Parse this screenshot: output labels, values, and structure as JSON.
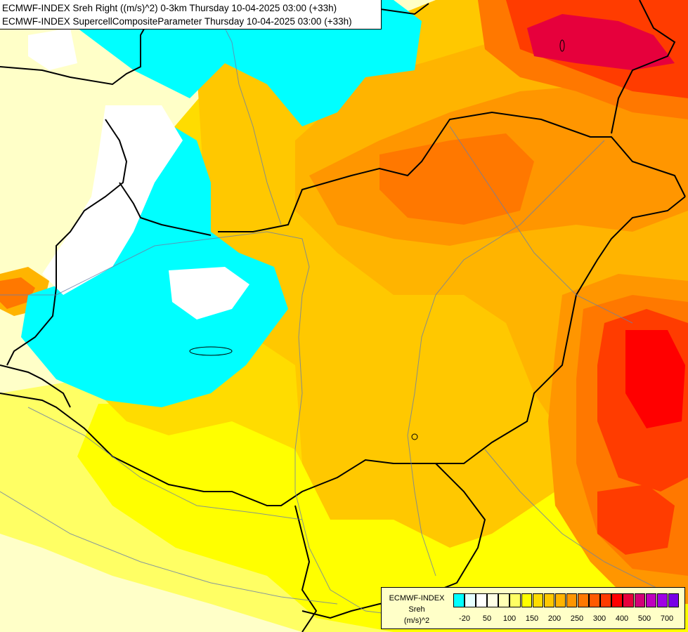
{
  "header": {
    "line1": "ECMWF-INDEX Sreh Right ((m/s)^2) 0-3km Thursday 10-04-2025 03:00 (+33h)",
    "line2": "ECMWF-INDEX SupercellCompositeParameter Thursday 10-04-2025 03:00 (+33h)"
  },
  "legend": {
    "title": "ECMWF-INDEX",
    "unit_name": "Sreh",
    "unit": "(m/s)^2",
    "colors": [
      "#00ffff",
      "#e6ffff",
      "#ffffff",
      "#ffffe6",
      "#ffffb4",
      "#ffff64",
      "#ffff00",
      "#ffdc00",
      "#ffc800",
      "#ffb400",
      "#ff9600",
      "#ff7800",
      "#ff5a00",
      "#ff3c00",
      "#ff0000",
      "#e6003c",
      "#d20078",
      "#be00be",
      "#a000e6",
      "#7800e6",
      "#5000c8",
      "#2800a0",
      "#000078"
    ],
    "tick_labels": [
      "-20",
      "50",
      "100",
      "150",
      "200",
      "250",
      "300",
      "400",
      "500",
      "700"
    ]
  },
  "map_colors": {
    "pale": "#ffffc8",
    "yellow": "#ffff00",
    "light_yellow": "#ffff64",
    "gold": "#ffdc00",
    "orange_light": "#ffc800",
    "orange": "#ffb400",
    "orange_dark": "#ff9600",
    "orange_red": "#ff7800",
    "red_orange": "#ff5a00",
    "red": "#ff3c00",
    "deep_red": "#ff0000",
    "crimson": "#e6003c",
    "cyan": "#00ffff",
    "white": "#ffffff"
  }
}
